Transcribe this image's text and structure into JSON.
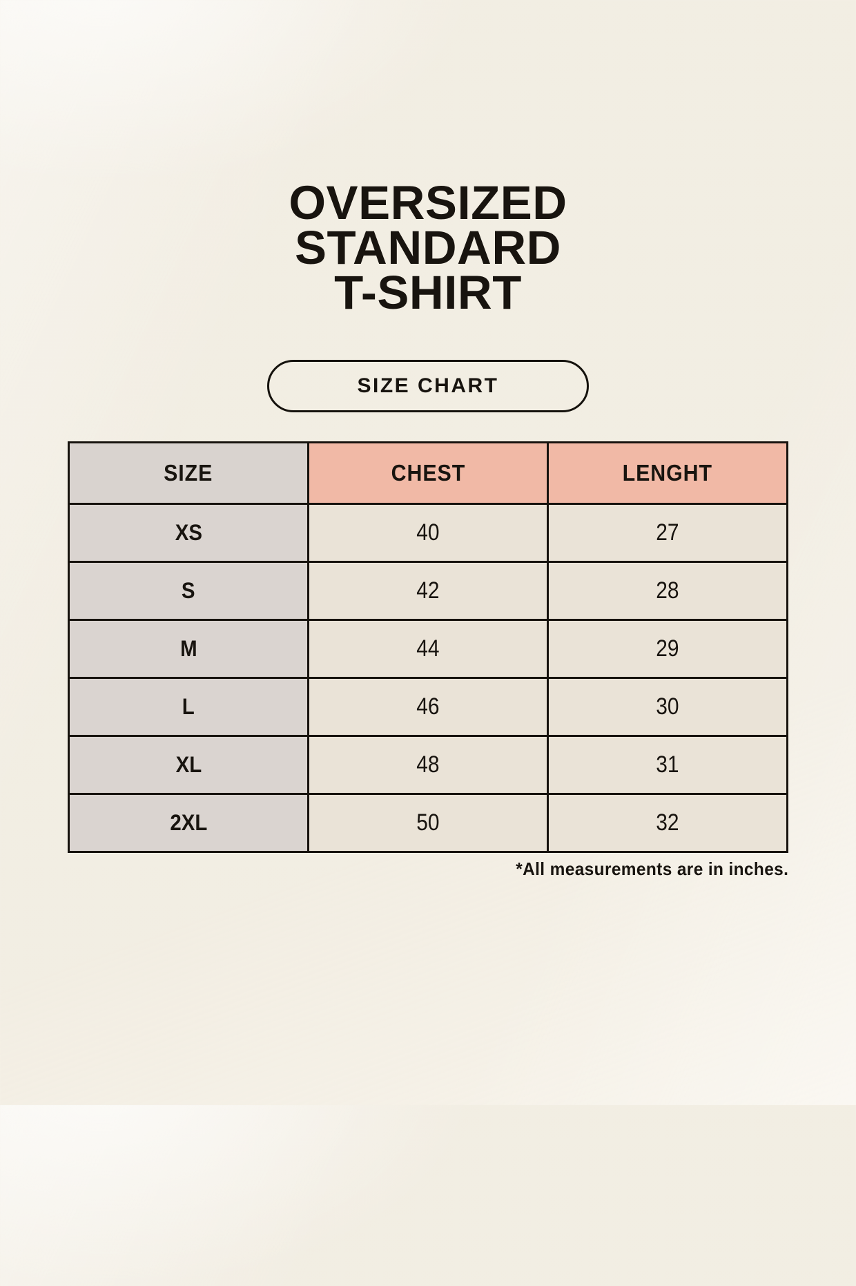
{
  "title": {
    "lines": [
      "OVERSIZED",
      "STANDARD",
      "T-SHIRT"
    ]
  },
  "size_chart_button": {
    "label": "SIZE CHART"
  },
  "table": {
    "column_headers": [
      "SIZE",
      "CHEST",
      "LENGHT"
    ],
    "rows": [
      {
        "size": "XS",
        "chest": "40",
        "length": "27"
      },
      {
        "size": "S",
        "chest": "42",
        "length": "28"
      },
      {
        "size": "M",
        "chest": "44",
        "length": "29"
      },
      {
        "size": "L",
        "chest": "46",
        "length": "30"
      },
      {
        "size": "XL",
        "chest": "48",
        "length": "31"
      },
      {
        "size": "2XL",
        "chest": "50",
        "length": "32"
      }
    ]
  },
  "footnote": "*All measurements are in inches.",
  "colors": {
    "page_background": "#f7f3ea",
    "header_size_bg": "#d9d3cf",
    "header_measure_bg": "#f1b9a6",
    "row_label_bg": "#dad4d0",
    "row_value_bg": "#eae3d7",
    "table_border": "#17130e",
    "text": "#18140f"
  }
}
